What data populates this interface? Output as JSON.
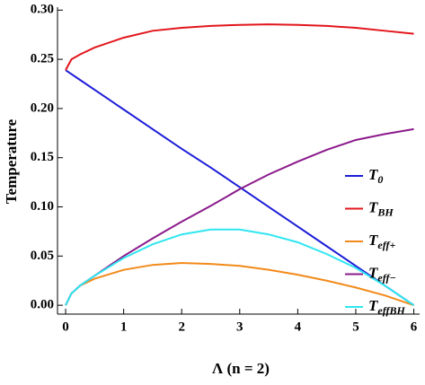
{
  "chart_data": {
    "type": "line",
    "x_label": "Λ (n = 2)",
    "y_label": "Temperature",
    "x": [
      0,
      0.1,
      0.25,
      0.5,
      1,
      1.5,
      2,
      2.5,
      3,
      3.5,
      4,
      4.5,
      5,
      5.5,
      6
    ],
    "series": [
      {
        "name": "T",
        "subscript": "0",
        "color": "#1c1cd8",
        "values": [
          0.239,
          0.235,
          0.229,
          0.219,
          0.199,
          0.179,
          0.159,
          0.14,
          0.12,
          0.1,
          0.08,
          0.06,
          0.04,
          0.02,
          0
        ]
      },
      {
        "name": "T",
        "subscript": "BH",
        "color": "#e2161c",
        "values": [
          0.239,
          0.25,
          0.255,
          0.262,
          0.272,
          0.279,
          0.282,
          0.284,
          0.285,
          0.2855,
          0.285,
          0.284,
          0.282,
          0.279,
          0.276
        ]
      },
      {
        "name": "T",
        "subscript": "eff+",
        "color": "#f28a1a",
        "values": [
          0,
          0.012,
          0.02,
          0.027,
          0.036,
          0.041,
          0.043,
          0.042,
          0.04,
          0.036,
          0.031,
          0.025,
          0.018,
          0.01,
          0
        ]
      },
      {
        "name": "T",
        "subscript": "eff−",
        "color": "#8b1a8b",
        "values": [
          0,
          0.012,
          0.02,
          0.03,
          0.05,
          0.068,
          0.085,
          0.101,
          0.118,
          0.133,
          0.146,
          0.158,
          0.168,
          0.174,
          0.179
        ]
      },
      {
        "name": "T",
        "subscript": "effBH",
        "color": "#30e6f0",
        "values": [
          0,
          0.012,
          0.02,
          0.03,
          0.048,
          0.062,
          0.072,
          0.077,
          0.077,
          0.072,
          0.064,
          0.052,
          0.038,
          0.02,
          0
        ]
      }
    ],
    "xlim": [
      -0.14,
      6.1
    ],
    "ylim": [
      -0.009,
      0.303
    ],
    "xticks": [
      0,
      1,
      2,
      3,
      4,
      5,
      6
    ],
    "yticks": [
      {
        "value": 0,
        "label": "0.00"
      },
      {
        "value": 0.05,
        "label": "0.05"
      },
      {
        "value": 0.1,
        "label": "0.10"
      },
      {
        "value": 0.15,
        "label": "0.15"
      },
      {
        "value": 0.2,
        "label": "0.20"
      },
      {
        "value": 0.25,
        "label": "0.25"
      },
      {
        "value": 0.3,
        "label": "0.30"
      }
    ],
    "legend": "right"
  }
}
